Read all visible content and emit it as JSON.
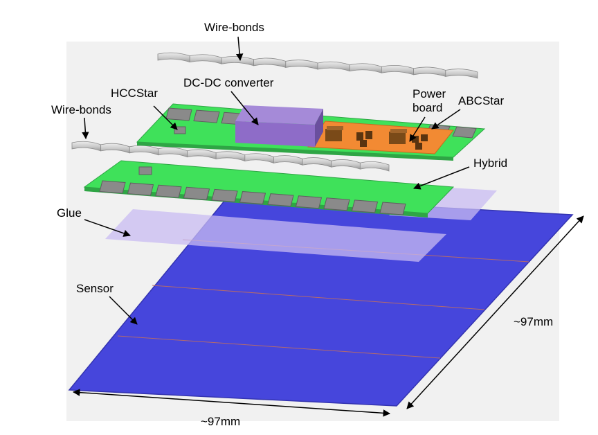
{
  "labels": {
    "wire_bonds_top": "Wire-bonds",
    "wire_bonds_left": "Wire-bonds",
    "hccstar": "HCCStar",
    "dcdc": "DC-DC converter",
    "power_board_line1": "Power",
    "power_board_line2": "board",
    "abcstar": "ABCStar",
    "hybrid": "Hybrid",
    "glue": "Glue",
    "sensor": "Sensor",
    "width_dim": "~97mm",
    "height_dim": "~97mm"
  },
  "colors": {
    "background_panel": "#f1f1f1",
    "sensor": "#4646dc",
    "sensor_edge": "#3333b0",
    "sensor_strip": "#b56a6a",
    "glue": "#c8bbf2",
    "hybrid_board": "#3fe15a",
    "hybrid_edge": "#2fa545",
    "chip": "#8a8a8a",
    "chip_edge": "#5e5e5e",
    "dcdc_box": "#8e6cc8",
    "power_board": "#f28a33",
    "component": "#7a4a18",
    "wire_bond": "#cfcfcf"
  }
}
